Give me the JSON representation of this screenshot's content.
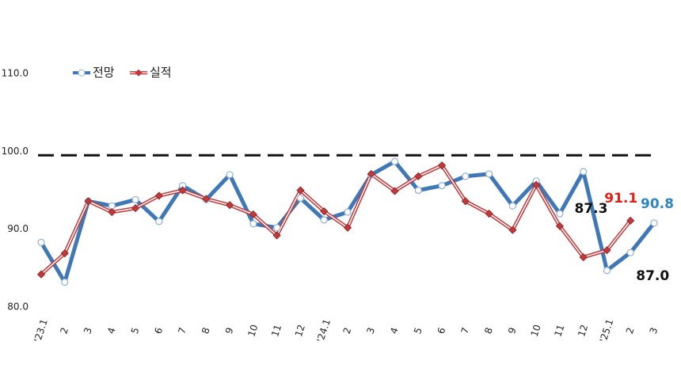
{
  "chart_data": {
    "type": "line",
    "categories": [
      "'23.1",
      "2",
      "3",
      "4",
      "5",
      "6",
      "7",
      "8",
      "9",
      "10",
      "11",
      "12",
      "'24.1",
      "2",
      "3",
      "4",
      "5",
      "6",
      "7",
      "8",
      "9",
      "10",
      "11",
      "12",
      "'25.1",
      "2",
      "3"
    ],
    "series": [
      {
        "name": "전망",
        "color": "#3f78b5",
        "label_color": "#2e86c1",
        "values": [
          88.3,
          83.2,
          93.6,
          93.0,
          93.8,
          91.0,
          95.6,
          93.8,
          97.0,
          90.7,
          90.2,
          94.0,
          91.2,
          92.2,
          97.0,
          98.7,
          95.0,
          95.6,
          96.8,
          97.1,
          93.0,
          96.2,
          92.0,
          97.4,
          84.7,
          87.0,
          90.8
        ],
        "value_labels": [
          null,
          null,
          null,
          null,
          null,
          null,
          null,
          null,
          null,
          null,
          null,
          null,
          null,
          null,
          null,
          null,
          null,
          null,
          null,
          null,
          null,
          null,
          null,
          null,
          null,
          "87.0",
          "90.8"
        ]
      },
      {
        "name": "실적",
        "color": "#c0393b",
        "label_color": "#e0201b",
        "values": [
          84.2,
          86.9,
          93.6,
          92.2,
          92.7,
          94.3,
          95.0,
          93.9,
          93.1,
          91.9,
          89.2,
          95.0,
          92.3,
          90.2,
          97.1,
          94.9,
          96.8,
          98.2,
          93.6,
          92.0,
          89.9,
          95.7,
          90.4,
          86.4,
          87.3,
          91.1,
          null
        ],
        "value_labels": [
          null,
          null,
          null,
          null,
          null,
          null,
          null,
          null,
          null,
          null,
          null,
          null,
          null,
          null,
          null,
          null,
          null,
          null,
          null,
          null,
          null,
          null,
          null,
          null,
          "87.3",
          "91.1",
          null
        ]
      }
    ],
    "ylim": [
      80,
      110
    ],
    "yticks": [
      {
        "value": 80,
        "label": "80.0"
      },
      {
        "value": 90,
        "label": "90.0"
      },
      {
        "value": 100,
        "label": "100.0"
      },
      {
        "value": 110,
        "label": "110.0"
      }
    ],
    "reference_line": 99.5,
    "grid": false
  }
}
